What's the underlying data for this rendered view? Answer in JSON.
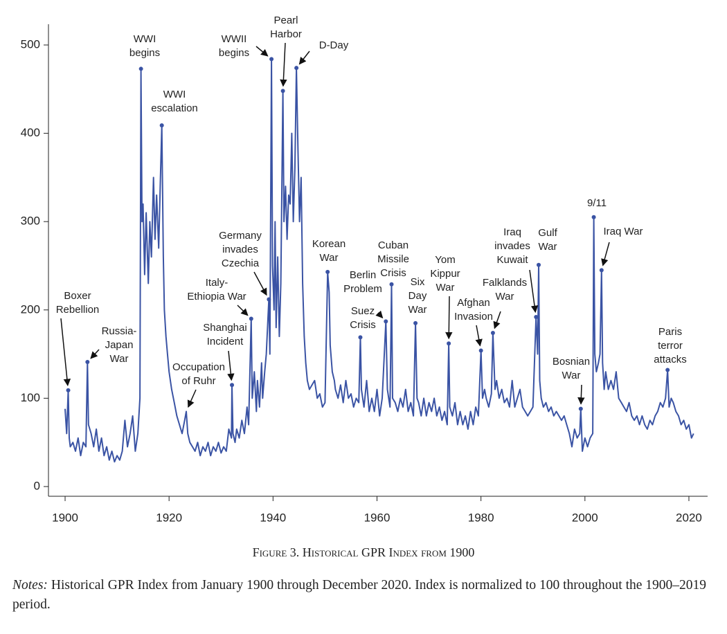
{
  "chart_data": {
    "type": "line",
    "color": "#3a53a4",
    "xlim": [
      1896.8,
      2023.6
    ],
    "ylim": [
      -11,
      523.5
    ],
    "xticks": [
      1900,
      1920,
      1940,
      1960,
      1980,
      2000,
      2020
    ],
    "yticks": [
      0,
      100,
      200,
      300,
      400,
      500
    ],
    "x": [
      1900,
      1900.3,
      1900.6,
      1900.8,
      1901,
      1901.5,
      1902,
      1902.5,
      1903,
      1903.5,
      1904,
      1904.3,
      1904.5,
      1905,
      1905.5,
      1906,
      1906.5,
      1907,
      1907.5,
      1908,
      1908.5,
      1909,
      1909.5,
      1910,
      1910.5,
      1911,
      1911.5,
      1912,
      1912.5,
      1913,
      1913.5,
      1914,
      1914.4,
      1914.6,
      1914.8,
      1915,
      1915.3,
      1915.6,
      1916,
      1916.3,
      1916.6,
      1917,
      1917.3,
      1917.6,
      1918,
      1918.3,
      1918.6,
      1918.9,
      1919.1,
      1919.4,
      1919.7,
      1920,
      1920.5,
      1921,
      1921.5,
      1922,
      1922.5,
      1923,
      1923.3,
      1923.6,
      1924,
      1924.5,
      1925,
      1925.5,
      1926,
      1926.5,
      1927,
      1927.5,
      1928,
      1928.5,
      1929,
      1929.5,
      1930,
      1930.5,
      1931,
      1931.5,
      1932,
      1932.1,
      1932.3,
      1932.7,
      1933,
      1933.5,
      1934,
      1934.5,
      1935,
      1935.3,
      1935.8,
      1936,
      1936.4,
      1936.8,
      1937,
      1937.4,
      1937.8,
      1938,
      1938.4,
      1938.7,
      1939.2,
      1939.4,
      1939.7,
      1939.9,
      1940.2,
      1940.4,
      1940.6,
      1940.9,
      1941.2,
      1941.5,
      1941.9,
      1942.1,
      1942.4,
      1942.7,
      1943,
      1943.3,
      1943.6,
      1943.9,
      1944.2,
      1944.5,
      1944.8,
      1945.1,
      1945.4,
      1945.7,
      1946,
      1946.3,
      1946.6,
      1947,
      1947.5,
      1948,
      1948.5,
      1949,
      1949.5,
      1950,
      1950.5,
      1950.8,
      1951,
      1951.4,
      1951.8,
      1952,
      1952.5,
      1953,
      1953.5,
      1954,
      1954.5,
      1955,
      1955.5,
      1956,
      1956.5,
      1956.8,
      1957,
      1957.5,
      1958,
      1958.5,
      1959,
      1959.5,
      1960,
      1960.5,
      1961,
      1961.7,
      1962,
      1962.5,
      1962.8,
      1963,
      1963.5,
      1964,
      1964.5,
      1965,
      1965.5,
      1966,
      1966.5,
      1967,
      1967.4,
      1967.7,
      1968,
      1968.5,
      1969,
      1969.5,
      1970,
      1970.5,
      1971,
      1971.5,
      1972,
      1972.5,
      1973,
      1973.5,
      1973.8,
      1974,
      1974.5,
      1975,
      1975.5,
      1976,
      1976.5,
      1977,
      1977.5,
      1978,
      1978.5,
      1979,
      1979.5,
      1980,
      1980.3,
      1980.7,
      1981,
      1981.5,
      1982,
      1982.3,
      1982.7,
      1983,
      1983.5,
      1984,
      1984.5,
      1985,
      1985.5,
      1986,
      1986.5,
      1987,
      1987.5,
      1988,
      1988.5,
      1989,
      1989.5,
      1990,
      1990.6,
      1990.9,
      1991.1,
      1991.3,
      1991.6,
      1992,
      1992.5,
      1993,
      1993.5,
      1994,
      1994.5,
      1995,
      1995.5,
      1996,
      1996.5,
      1997,
      1997.5,
      1998,
      1998.5,
      1999,
      1999.2,
      1999.5,
      2000,
      2000.5,
      2001,
      2001.5,
      2001.7,
      2001.9,
      2002.2,
      2002.6,
      2002.9,
      2003.2,
      2003.4,
      2003.7,
      2004,
      2004.5,
      2005,
      2005.5,
      2006,
      2006.5,
      2007,
      2007.5,
      2008,
      2008.5,
      2009,
      2009.5,
      2010,
      2010.5,
      2011,
      2011.5,
      2012,
      2012.5,
      2013,
      2013.5,
      2014,
      2014.5,
      2015,
      2015.5,
      2015.9,
      2016.2,
      2016.6,
      2017,
      2017.5,
      2018,
      2018.5,
      2019,
      2019.5,
      2020,
      2020.5,
      2020.9
    ],
    "values": [
      88,
      60,
      109,
      55,
      45,
      50,
      40,
      55,
      35,
      50,
      45,
      141,
      70,
      60,
      45,
      65,
      40,
      55,
      35,
      45,
      30,
      40,
      28,
      35,
      30,
      40,
      75,
      45,
      60,
      80,
      40,
      60,
      100,
      473,
      300,
      320,
      240,
      310,
      230,
      300,
      260,
      350,
      280,
      330,
      270,
      340,
      409,
      260,
      200,
      170,
      150,
      130,
      110,
      95,
      80,
      70,
      60,
      75,
      85,
      60,
      50,
      45,
      40,
      50,
      35,
      45,
      40,
      50,
      35,
      45,
      40,
      50,
      38,
      45,
      40,
      65,
      55,
      115,
      60,
      50,
      65,
      55,
      75,
      60,
      90,
      70,
      190,
      100,
      130,
      85,
      120,
      90,
      140,
      100,
      130,
      150,
      212,
      150,
      484,
      250,
      200,
      300,
      180,
      260,
      170,
      230,
      448,
      300,
      340,
      280,
      330,
      320,
      400,
      300,
      360,
      474,
      380,
      300,
      350,
      230,
      170,
      140,
      120,
      110,
      115,
      120,
      100,
      105,
      90,
      95,
      243,
      220,
      160,
      130,
      120,
      110,
      100,
      115,
      95,
      120,
      100,
      105,
      90,
      100,
      95,
      169,
      110,
      90,
      120,
      85,
      100,
      85,
      110,
      80,
      100,
      187,
      110,
      90,
      229,
      100,
      95,
      85,
      100,
      90,
      110,
      85,
      95,
      80,
      185,
      100,
      95,
      80,
      100,
      80,
      95,
      85,
      100,
      80,
      90,
      75,
      85,
      70,
      162,
      90,
      80,
      95,
      70,
      85,
      70,
      80,
      65,
      85,
      70,
      90,
      80,
      154,
      100,
      110,
      100,
      90,
      105,
      174,
      110,
      120,
      100,
      110,
      95,
      100,
      90,
      120,
      90,
      100,
      110,
      90,
      85,
      80,
      85,
      90,
      192,
      150,
      251,
      120,
      100,
      90,
      95,
      85,
      90,
      80,
      85,
      80,
      75,
      80,
      70,
      60,
      45,
      65,
      55,
      60,
      88,
      40,
      55,
      45,
      55,
      60,
      305,
      150,
      130,
      140,
      150,
      245,
      140,
      110,
      130,
      110,
      120,
      110,
      130,
      100,
      95,
      90,
      85,
      95,
      80,
      75,
      80,
      70,
      80,
      70,
      65,
      75,
      70,
      80,
      85,
      95,
      90,
      100,
      132,
      90,
      100,
      95,
      85,
      80,
      70,
      75,
      65,
      70,
      55,
      60
    ],
    "annotations": [
      {
        "text": [
          "Boxer",
          "Rebellion"
        ],
        "x": 1900.6,
        "y": 109
      },
      {
        "text": [
          "Russia-",
          "Japan",
          "War"
        ],
        "x": 1904.3,
        "y": 141
      },
      {
        "text": [
          "WWI",
          "begins"
        ],
        "x": 1914.6,
        "y": 473
      },
      {
        "text": [
          "WWI",
          "escalation"
        ],
        "x": 1918.6,
        "y": 409
      },
      {
        "text": [
          "Occupation",
          "of Ruhr"
        ],
        "x": 1923.3,
        "y": 85
      },
      {
        "text": [
          "Shanghai",
          "Incident"
        ],
        "x": 1932.1,
        "y": 115
      },
      {
        "text": [
          "Italy-",
          "Ethiopia War"
        ],
        "x": 1935.8,
        "y": 190
      },
      {
        "text": [
          "Germany",
          "invades",
          "Czechia"
        ],
        "x": 1939.2,
        "y": 212
      },
      {
        "text": [
          "WWII",
          "begins"
        ],
        "x": 1939.7,
        "y": 484
      },
      {
        "text": [
          "Pearl",
          "Harbor"
        ],
        "x": 1941.9,
        "y": 448
      },
      {
        "text": [
          "D-Day"
        ],
        "x": 1944.5,
        "y": 474
      },
      {
        "text": [
          "Korean",
          "War"
        ],
        "x": 1950.5,
        "y": 243
      },
      {
        "text": [
          "Suez",
          "Crisis"
        ],
        "x": 1956.8,
        "y": 169
      },
      {
        "text": [
          "Berlin",
          "Problem"
        ],
        "x": 1961.7,
        "y": 187
      },
      {
        "text": [
          "Cuban",
          "Missile",
          "Crisis"
        ],
        "x": 1962.8,
        "y": 229
      },
      {
        "text": [
          "Six",
          "Day",
          "War"
        ],
        "x": 1967.4,
        "y": 185
      },
      {
        "text": [
          "Yom",
          "Kippur",
          "War"
        ],
        "x": 1973.8,
        "y": 162
      },
      {
        "text": [
          "Afghan",
          "Invasion"
        ],
        "x": 1980,
        "y": 154
      },
      {
        "text": [
          "Falklands",
          "War"
        ],
        "x": 1982.3,
        "y": 174
      },
      {
        "text": [
          "Iraq",
          "invades",
          "Kuwait"
        ],
        "x": 1990.6,
        "y": 192
      },
      {
        "text": [
          "Gulf",
          "War"
        ],
        "x": 1991.1,
        "y": 251
      },
      {
        "text": [
          "Bosnian",
          "War"
        ],
        "x": 1999.2,
        "y": 88
      },
      {
        "text": [
          "9/11"
        ],
        "x": 2001.7,
        "y": 305
      },
      {
        "text": [
          "Iraq War"
        ],
        "x": 2003.2,
        "y": 245
      },
      {
        "text": [
          "Paris",
          "terror",
          "attacks"
        ],
        "x": 2015.9,
        "y": 132
      }
    ]
  },
  "caption": "Figure 3. Historical GPR Index from 1900",
  "notes": {
    "label": "Notes:",
    "text": "Historical GPR Index from January 1900 through December 2020. Index is normalized to 100 throughout the 1900–2019 period."
  }
}
